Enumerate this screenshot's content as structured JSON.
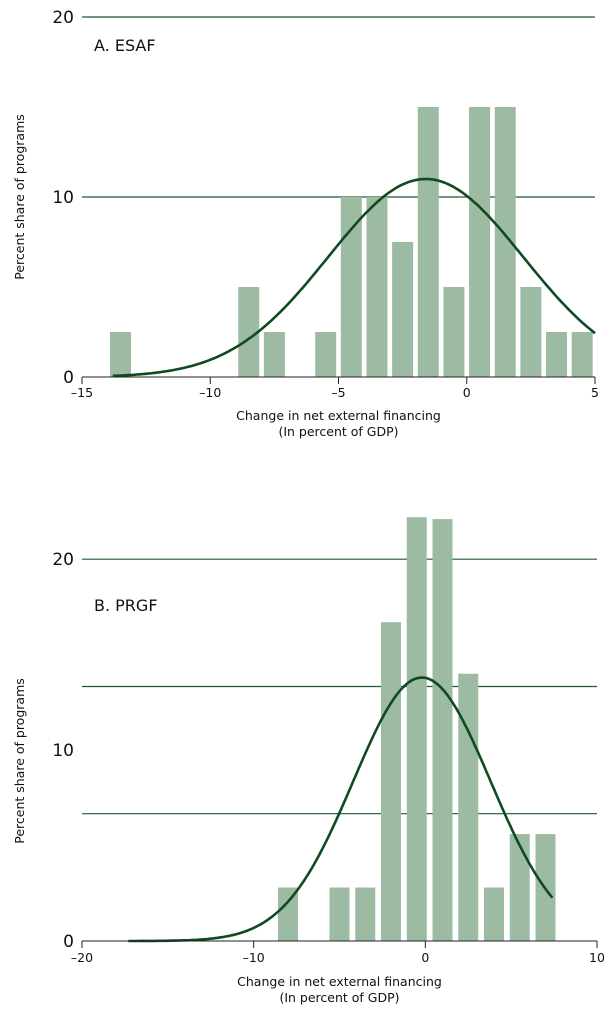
{
  "colors": {
    "bar": "#9dbba3",
    "grid": "#1e5a2c",
    "curve": "#0f4a21",
    "axis": "#222222"
  },
  "chart_data": [
    {
      "type": "bar",
      "title": "A. ESAF",
      "xlabel": "Change in net external financing",
      "xlabel2": "(In percent of GDP)",
      "ylabel": "Percent share of programs",
      "xlim": [
        -15,
        5
      ],
      "ylim": [
        0,
        20
      ],
      "xticks": [
        -15,
        -10,
        -5,
        0,
        5
      ],
      "xtick_labels": [
        "–15",
        "–10",
        "–5",
        "0",
        "5"
      ],
      "yticks": [
        0,
        10,
        20
      ],
      "ytick_labels": [
        "0",
        "10",
        "20"
      ],
      "gridlines": [
        10,
        20
      ],
      "bin_width": 1,
      "bins": [
        {
          "x": -13.5,
          "value": 2.5
        },
        {
          "x": -8.5,
          "value": 5.0
        },
        {
          "x": -7.5,
          "value": 2.5
        },
        {
          "x": -5.5,
          "value": 2.5
        },
        {
          "x": -4.5,
          "value": 10.0
        },
        {
          "x": -3.5,
          "value": 10.0
        },
        {
          "x": -2.5,
          "value": 7.5
        },
        {
          "x": -1.5,
          "value": 15.0
        },
        {
          "x": -0.5,
          "value": 5.0
        },
        {
          "x": 0.5,
          "value": 15.0
        },
        {
          "x": 1.5,
          "value": 15.0
        },
        {
          "x": 2.5,
          "value": 5.0
        },
        {
          "x": 3.5,
          "value": 2.5
        },
        {
          "x": 4.5,
          "value": 2.5
        }
      ],
      "curve": {
        "type": "normal_density",
        "mean": -1.6,
        "sd": 3.8,
        "peak": 11.0,
        "x_range": [
          -13.8,
          5
        ]
      }
    },
    {
      "type": "bar",
      "title": "B. PRGF",
      "xlabel": "Change in net external financing",
      "xlabel2": "(In percent of GDP)",
      "ylabel": "Percent share of programs",
      "xlim": [
        -20,
        10
      ],
      "ylim": [
        0,
        22
      ],
      "xticks": [
        -20,
        -10,
        0,
        10
      ],
      "xtick_labels": [
        "–20",
        "–10",
        "0",
        "10"
      ],
      "yticks": [
        0,
        10,
        20
      ],
      "ytick_labels": [
        "0",
        "10",
        "20"
      ],
      "gridlines": [
        6.67,
        13.33,
        20
      ],
      "bin_width": 1.5,
      "bins": [
        {
          "x": -8.0,
          "value": 2.8
        },
        {
          "x": -5.0,
          "value": 2.8
        },
        {
          "x": -3.5,
          "value": 2.8
        },
        {
          "x": -2.0,
          "value": 16.7
        },
        {
          "x": -0.5,
          "value": 22.2
        },
        {
          "x": 1.0,
          "value": 22.1
        },
        {
          "x": 2.5,
          "value": 14.0
        },
        {
          "x": 4.0,
          "value": 2.8
        },
        {
          "x": 5.5,
          "value": 5.6
        },
        {
          "x": 7.0,
          "value": 5.6
        }
      ],
      "curve": {
        "type": "normal_density",
        "mean": -0.2,
        "sd": 4.0,
        "peak": 13.8,
        "x_range": [
          -17.3,
          7.4
        ]
      }
    }
  ]
}
